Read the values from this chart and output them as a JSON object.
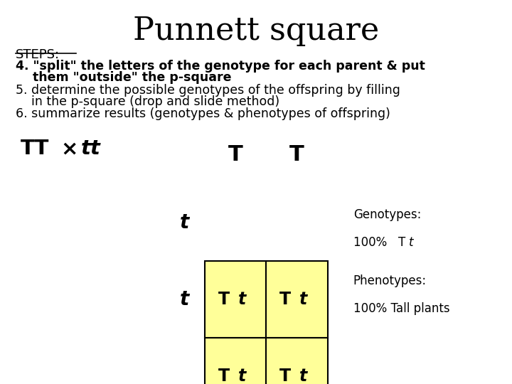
{
  "title": "Punnett square",
  "bg_color": "#ffffff",
  "steps_label": "STEPS:",
  "step4_line1": "4. \"split\" the letters of the genotype for each parent & put",
  "step4_line2": "    them \"outside\" the p-square",
  "step5_line1": "5. determine the possible genotypes of the offspring by filling",
  "step5_line2": "    in the p-square (drop and slide method)",
  "step6": "6. summarize results (genotypes & phenotypes of offspring)",
  "col_headers": [
    "T",
    "T"
  ],
  "row_headers": [
    "t",
    "t"
  ],
  "cell_bg": "#ffff99",
  "cell_border": "#000000",
  "genotypes_label": "Genotypes:",
  "genotypes_value": "100%   T t",
  "phenotypes_label": "Phenotypes:",
  "phenotypes_value": "100% Tall plants",
  "gx": 0.4,
  "gy": 0.12,
  "gw": 0.24,
  "gh": 0.4
}
